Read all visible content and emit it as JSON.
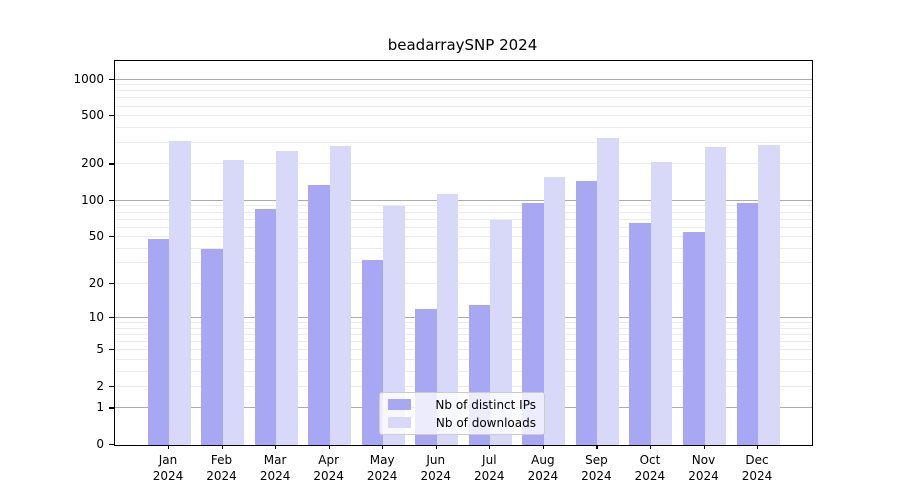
{
  "title": "beadarraySNP 2024",
  "colors": {
    "ips_bar": "#a7a7f3",
    "downloads_bar": "#d8d8f9",
    "grid_major": "#ababab",
    "grid_minor": "#ebebeb",
    "spine": "#000000",
    "legend_border": "#cccccc"
  },
  "legend": {
    "items": [
      {
        "label": "Nb of distinct IPs",
        "color": "#a7a7f3"
      },
      {
        "label": "Nb of downloads",
        "color": "#d8d8f9"
      }
    ]
  },
  "chart_data": {
    "type": "bar",
    "title": "beadarraySNP 2024",
    "categories": [
      "Jan",
      "Feb",
      "Mar",
      "Apr",
      "May",
      "Jun",
      "Jul",
      "Aug",
      "Sep",
      "Oct",
      "Nov",
      "Dec"
    ],
    "year": "2024",
    "series": [
      {
        "name": "Nb of distinct IPs",
        "color": "#a7a7f3",
        "values": [
          48,
          40,
          85,
          135,
          32,
          12,
          13,
          97,
          146,
          65,
          55,
          96
        ]
      },
      {
        "name": "Nb of downloads",
        "color": "#d8d8f9",
        "values": [
          310,
          220,
          260,
          285,
          90,
          114,
          70,
          158,
          330,
          210,
          278,
          290
        ]
      }
    ],
    "xlabel": "",
    "ylabel": "",
    "yticks": [
      0,
      1,
      2,
      5,
      10,
      20,
      50,
      100,
      200,
      500,
      1000
    ],
    "scale": "log1p",
    "ylim": [
      0,
      1430
    ],
    "grid": "on",
    "legend_position": "lower-center-inside"
  }
}
